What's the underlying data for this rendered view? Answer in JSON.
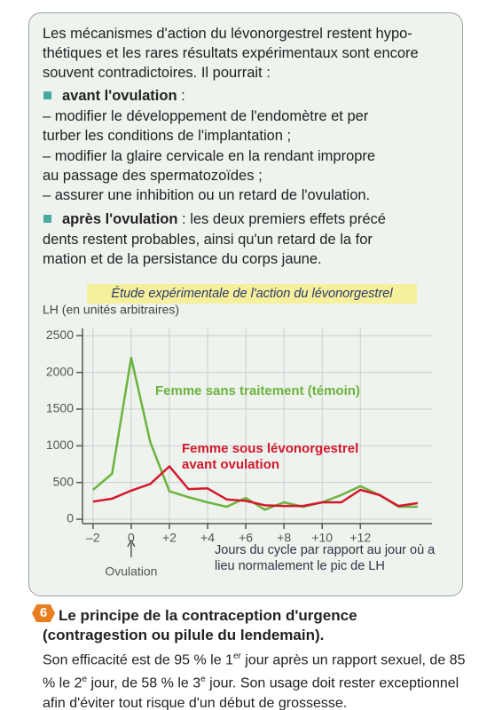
{
  "box": {
    "intro_lines": [
      "Les mécanismes d'action du lévonorgestrel restent hypo-",
      "thétiques et les rares résultats expérimentaux sont encore",
      "souvent contradictoires. Il pourrait :"
    ],
    "sections": [
      {
        "bullet_title": "avant l'ovulation",
        "title_suffix": " :",
        "lines": [
          "– modifier le développement de l'endomètre et per",
          "turber les conditions de l'implantation ;",
          "– modifier la glaire cervicale en la rendant impropre",
          "au passage des spermatozoïdes ;",
          "– assurer une inhibition ou un retard de l'ovulation."
        ]
      },
      {
        "bullet_title": "après l'ovulation",
        "title_suffix": " : les deux premiers effets précé",
        "lines": [
          "dents restent probables, ainsi qu'un retard de la for",
          "mation et de la persistance du corps jaune."
        ]
      }
    ]
  },
  "chart_data": {
    "type": "line",
    "title": "Étude expérimentale de l'action du lévonorgestrel",
    "y_label": "LH (en unités arbitraires)",
    "x_label": "Jours du cycle par rapport au jour où a lieu normalement le pic de LH",
    "annotation": "Ovulation",
    "x": [
      -2,
      -1,
      0,
      1,
      2,
      3,
      4,
      5,
      6,
      7,
      8,
      9,
      10,
      11,
      12,
      13,
      14,
      15
    ],
    "series": [
      {
        "name": "Femme sans traitement (témoin)",
        "color": "#6cb33e",
        "values": [
          400,
          620,
          2200,
          1050,
          380,
          300,
          230,
          170,
          290,
          130,
          230,
          170,
          230,
          330,
          450,
          330,
          170,
          170
        ]
      },
      {
        "name": "Femme sous lévonorgestrel avant ovulation",
        "color": "#d4172c",
        "values": [
          240,
          280,
          390,
          480,
          720,
          410,
          420,
          270,
          250,
          190,
          180,
          180,
          230,
          230,
          400,
          330,
          180,
          220
        ]
      }
    ],
    "xlim": [
      -2.55,
      15.75
    ],
    "ylim": [
      -60,
      2600
    ],
    "xticks": [
      {
        "value": -2,
        "label": "–2"
      },
      0,
      {
        "value": 2,
        "label": "+2"
      },
      {
        "value": 4,
        "label": "+4"
      },
      {
        "value": 6,
        "label": "+6"
      },
      {
        "value": 8,
        "label": "+8"
      },
      {
        "value": 10,
        "label": "+10"
      },
      {
        "value": 12,
        "label": "+12"
      }
    ],
    "yticks": [
      0,
      500,
      1000,
      1500,
      2000,
      2500
    ],
    "grid": true
  },
  "section6": {
    "number": "6",
    "title_lines": [
      "Le principe de la contraception d'urgence",
      "(contragestion ou pilule du lendemain)."
    ],
    "body": [
      "Son efficacité est de 95 % le 1",
      "er",
      " jour après un rapport sexuel, de 85 % le 2",
      "e",
      " jour, de 58 % le 3",
      "e",
      " jour. Son usage doit rester exceptionnel afin d'éviter tout risque d'un début de grossesse."
    ]
  }
}
